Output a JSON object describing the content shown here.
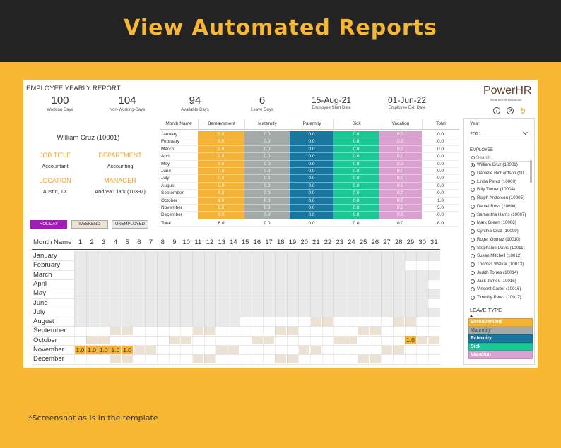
{
  "banner": {
    "title": "View Automated Reports"
  },
  "report": {
    "title": "EMPLOYEE YEARLY REPORT",
    "kpis": [
      {
        "value": "100",
        "label": "Working Days"
      },
      {
        "value": "104",
        "label": "Non-Working-Days"
      },
      {
        "value": "94",
        "label": "Available Days"
      },
      {
        "value": "6",
        "label": "Leave Days"
      },
      {
        "value": "15-Aug-21",
        "label": "Employee Start Date"
      },
      {
        "value": "01-Jun-22",
        "label": "Employee Exit Date"
      }
    ],
    "brand": {
      "name": "PowerHR",
      "tagline": "Smarter HR Decisions"
    },
    "employee": {
      "name": "William Cruz (10001)",
      "fields": [
        {
          "label": "JOB TITLE",
          "value": "Accountant"
        },
        {
          "label": "DEPARTMENT",
          "value": "Accounting"
        },
        {
          "label": "LOCATION",
          "value": "Austin, TX"
        },
        {
          "label": "MANAGER",
          "value": "Andrea Clark (10397)"
        }
      ]
    },
    "day_legend": [
      {
        "label": "HOLIDAY",
        "color": "#a01cb4"
      },
      {
        "label": "WEEKEND",
        "color": "#ece2d3"
      },
      {
        "label": "UNEMPLOYED",
        "color": "#e9e9e9"
      }
    ],
    "leave_table": {
      "columns": [
        "Month Name",
        "Bereavement",
        "Maternity",
        "Paternity",
        "Sick",
        "Vacation",
        "Total"
      ],
      "rows": [
        [
          "January",
          "0.0",
          "0.0",
          "0.0",
          "0.0",
          "0.0",
          "0.0"
        ],
        [
          "February",
          "0.0",
          "0.0",
          "0.0",
          "0.0",
          "0.0",
          "0.0"
        ],
        [
          "March",
          "0.0",
          "0.0",
          "0.0",
          "0.0",
          "0.0",
          "0.0"
        ],
        [
          "April",
          "0.0",
          "0.0",
          "0.0",
          "0.0",
          "0.0",
          "0.0"
        ],
        [
          "May",
          "0.0",
          "0.0",
          "0.0",
          "0.0",
          "0.0",
          "0.0"
        ],
        [
          "June",
          "0.0",
          "0.0",
          "0.0",
          "0.0",
          "0.0",
          "0.0"
        ],
        [
          "July",
          "0.0",
          "0.0",
          "0.0",
          "0.0",
          "0.0",
          "0.0"
        ],
        [
          "August",
          "0.0",
          "0.0",
          "0.0",
          "0.0",
          "0.0",
          "0.0"
        ],
        [
          "September",
          "0.0",
          "0.0",
          "0.0",
          "0.0",
          "0.0",
          "0.0"
        ],
        [
          "October",
          "1.0",
          "0.0",
          "0.0",
          "0.0",
          "0.0",
          "1.0"
        ],
        [
          "November",
          "5.0",
          "0.0",
          "0.0",
          "0.0",
          "0.0",
          "5.0"
        ],
        [
          "December",
          "0.0",
          "0.0",
          "0.0",
          "0.0",
          "0.0",
          "0.0"
        ]
      ],
      "total": [
        "Total",
        "6.0",
        "0.0",
        "0.0",
        "0.0",
        "0.0",
        "6.0"
      ]
    },
    "calendar": {
      "header": "Month Name",
      "days": [
        1,
        2,
        3,
        4,
        5,
        6,
        7,
        8,
        9,
        10,
        11,
        12,
        13,
        14,
        15,
        16,
        17,
        18,
        19,
        20,
        21,
        22,
        23,
        24,
        25,
        26,
        27,
        28,
        29,
        30,
        31
      ],
      "months": [
        {
          "name": "January",
          "unemployed_to": 31
        },
        {
          "name": "February",
          "unemployed_to": 28
        },
        {
          "name": "March",
          "unemployed_to": 31
        },
        {
          "name": "April",
          "unemployed_to": 30
        },
        {
          "name": "May",
          "unemployed_to": 31
        },
        {
          "name": "June",
          "unemployed_to": 30
        },
        {
          "name": "July",
          "unemployed_to": 31
        },
        {
          "name": "August",
          "unemployed_to": 14,
          "weekend": [
            21,
            22,
            28,
            29
          ]
        },
        {
          "name": "September",
          "weekend": [
            4,
            5,
            11,
            12,
            18,
            19,
            25,
            26
          ]
        },
        {
          "name": "October",
          "weekend": [
            2,
            3,
            9,
            10,
            16,
            17,
            23,
            24,
            30,
            31
          ],
          "leave": [
            {
              "day": 29,
              "label": "1.0",
              "type": "Bereavement"
            }
          ]
        },
        {
          "name": "November",
          "weekend": [
            6,
            7,
            13,
            14,
            20,
            21,
            27,
            28
          ],
          "leave": [
            {
              "day": 1,
              "label": "1.0",
              "type": "Bereavement"
            },
            {
              "day": 2,
              "label": "1.0",
              "type": "Bereavement"
            },
            {
              "day": 3,
              "label": "1.0",
              "type": "Bereavement"
            },
            {
              "day": 4,
              "label": "1.0",
              "type": "Bereavement"
            },
            {
              "day": 5,
              "label": "1.0",
              "type": "Bereavement"
            }
          ]
        },
        {
          "name": "December",
          "weekend": [
            4,
            5,
            11,
            12,
            18,
            19,
            25,
            26
          ]
        }
      ]
    }
  },
  "slicers": {
    "year_label": "Year",
    "year": "2021",
    "employee_label": "EMPLOYEE",
    "search": "Search",
    "employees": [
      "William Cruz (10001)",
      "Danielle Richardson (10...",
      "Linda Perez (10003)",
      "Billy Turner (10004)",
      "Ralph Anderson (10005)",
      "Daniel Ross (10006)",
      "Samantha Harris (10007)",
      "Mark Green (10008)",
      "Cynthia Cruz (10009)",
      "Roger Gomez (10010)",
      "Stephanie Davis (10011)",
      "Susan Mitchell (10012)",
      "Thomas Walker (10013)",
      "Judith Torres (10014)",
      "Jack James (10015)",
      "Vincent Carter (10016)",
      "Timothy Perez (10017)"
    ],
    "selected": 0,
    "leave_type_label": "LEAVE TYPE",
    "leave_types": [
      {
        "name": "Bereavement",
        "color": "#f5b335"
      },
      {
        "name": "Maternity",
        "color": "#a4aaa7"
      },
      {
        "name": "Paternity",
        "color": "#17779f"
      },
      {
        "name": "Sick",
        "color": "#1cc796"
      },
      {
        "name": "Vacation",
        "color": "#daa1d0"
      }
    ]
  },
  "footnote": "*Screenshot as is in the template"
}
